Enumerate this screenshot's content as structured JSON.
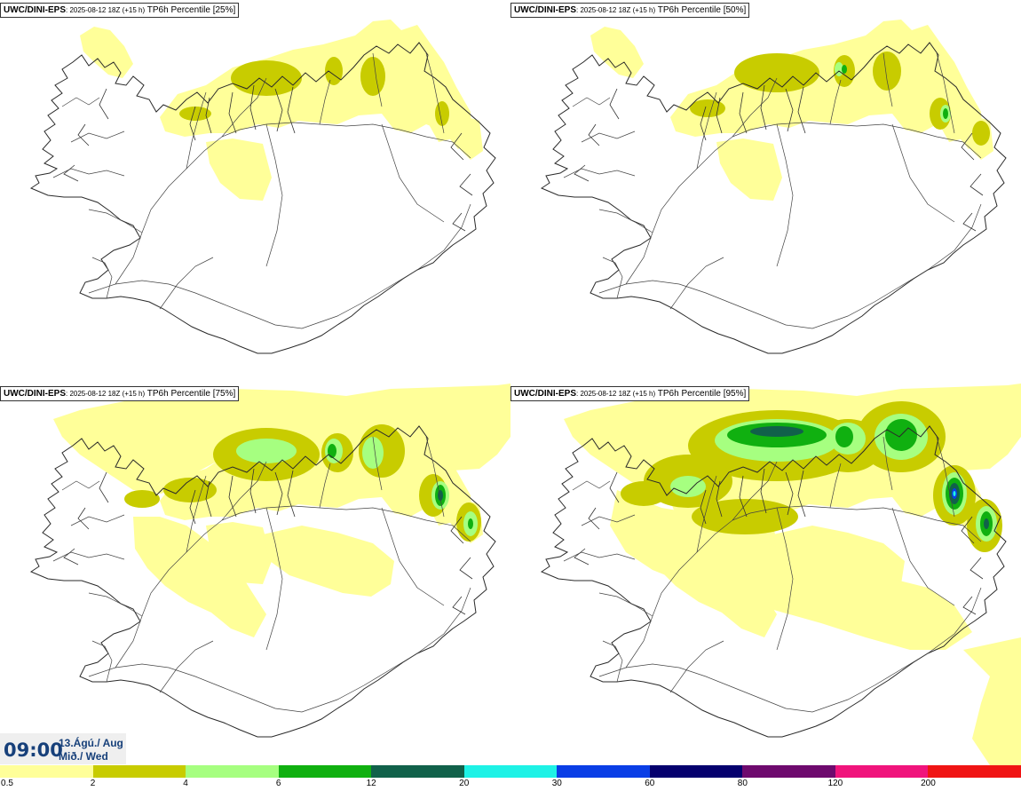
{
  "panels": [
    {
      "model": "UWC/DINI-EPS",
      "run": ": 2025-08-12 18Z (+15 h)",
      "product": "TP6h Percentile [25%]"
    },
    {
      "model": "UWC/DINI-EPS",
      "run": ": 2025-08-12 18Z (+15 h)",
      "product": "TP6h Percentile [50%]"
    },
    {
      "model": "UWC/DINI-EPS",
      "run": ": 2025-08-12 18Z (+15 h)",
      "product": "TP6h Percentile [75%]"
    },
    {
      "model": "UWC/DINI-EPS",
      "run": ": 2025-08-12 18Z (+15 h)",
      "product": "TP6h Percentile [95%]"
    }
  ],
  "valid_time": {
    "time": "09:00",
    "date": "13.Ágú./ Aug",
    "weekday": "Mið./ Wed"
  },
  "colorbar": {
    "colors": [
      "#ffff99",
      "#c8cc00",
      "#a6ff80",
      "#10b010",
      "#11614a",
      "#1ef2e6",
      "#0a3ee6",
      "#05006e",
      "#6e0a6e",
      "#f0147c",
      "#f01414"
    ],
    "ticks": [
      "0.5",
      "2",
      "4",
      "6",
      "12",
      "20",
      "30",
      "60",
      "80",
      "120",
      "200"
    ]
  },
  "precip_colors": {
    "c1": "#ffff99",
    "c2": "#c8cc00",
    "c3": "#a6ff80",
    "c4": "#10b010",
    "c5": "#11614a",
    "c6": "#0a3ee6",
    "c7": "#1ef2e6"
  }
}
